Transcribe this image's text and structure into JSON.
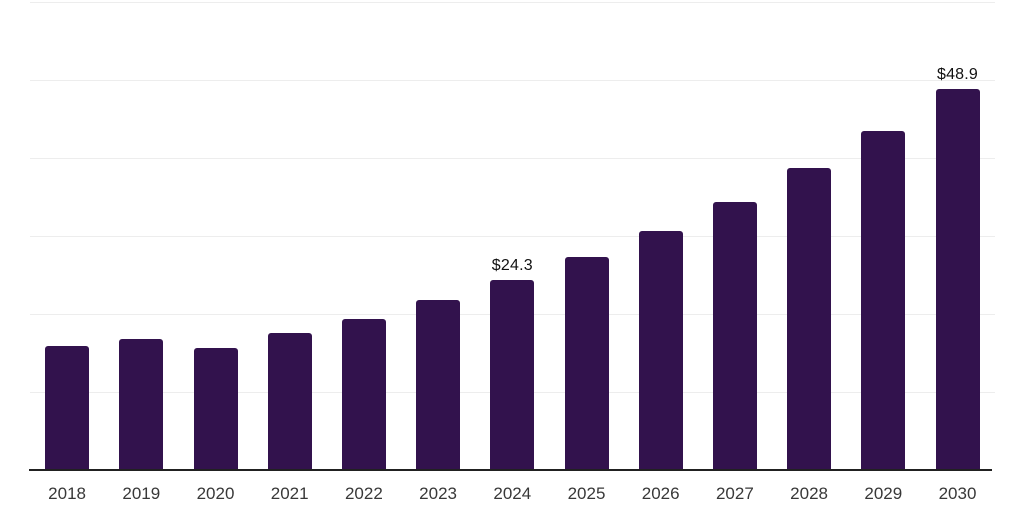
{
  "chart_data": {
    "type": "bar",
    "title": "",
    "xlabel": "",
    "ylabel": "",
    "categories": [
      "2018",
      "2019",
      "2020",
      "2021",
      "2022",
      "2023",
      "2024",
      "2025",
      "2026",
      "2027",
      "2028",
      "2029",
      "2030"
    ],
    "values": [
      15.9,
      16.8,
      15.7,
      17.6,
      19.4,
      21.8,
      24.3,
      27.3,
      30.6,
      34.3,
      38.7,
      43.5,
      48.9
    ],
    "bar_labels": [
      "",
      "",
      "",
      "",
      "",
      "",
      "$24.3",
      "",
      "",
      "",
      "",
      "",
      "$48.9"
    ],
    "ylim": [
      0,
      60
    ],
    "gridline_step": 10,
    "grid": true,
    "legend": false,
    "y_tick_labels_shown": false,
    "colors": {
      "bar": "#32124d",
      "gridline": "#ededed",
      "axis_line": "#212121",
      "tick_label": "#383838",
      "value_label": "#111111",
      "background": "#ffffff"
    }
  }
}
